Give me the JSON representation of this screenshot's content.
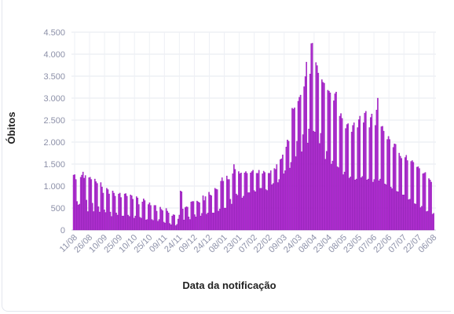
{
  "chart_data": {
    "type": "bar",
    "xlabel": "Data da notificação",
    "ylabel": "Óbitos",
    "ylim": [
      0,
      4500
    ],
    "yticks": [
      {
        "value": 0,
        "label": "0"
      },
      {
        "value": 500,
        "label": "500"
      },
      {
        "value": 1000,
        "label": "1.000"
      },
      {
        "value": 1500,
        "label": "1.500"
      },
      {
        "value": 2000,
        "label": "2.000"
      },
      {
        "value": 2500,
        "label": "2.500"
      },
      {
        "value": 3000,
        "label": "3.000"
      },
      {
        "value": 3500,
        "label": "3.500"
      },
      {
        "value": 4000,
        "label": "4.000"
      },
      {
        "value": 4500,
        "label": "4.500"
      }
    ],
    "xticks": [
      "11/08",
      "26/08",
      "10/09",
      "25/09",
      "10/10",
      "25/10",
      "09/11",
      "24/11",
      "09/12",
      "24/12",
      "08/01",
      "23/01",
      "07/02",
      "22/02",
      "09/03",
      "24/03",
      "08/04",
      "23/04",
      "08/05",
      "23/05",
      "07/06",
      "22/06",
      "07/07",
      "22/07",
      "06/08"
    ],
    "grid": true,
    "bar_color": "#b832d8",
    "bar_stroke": "#8a10b0",
    "values": [
      1250,
      1260,
      1150,
      650,
      570,
      590,
      1200,
      1250,
      1320,
      1180,
      1240,
      680,
      420,
      1190,
      1200,
      1150,
      610,
      420,
      1160,
      1100,
      1060,
      530,
      410,
      1080,
      980,
      840,
      460,
      400,
      950,
      920,
      820,
      410,
      310,
      890,
      840,
      770,
      390,
      340,
      820,
      840,
      740,
      320,
      320,
      820,
      830,
      770,
      340,
      310,
      800,
      780,
      700,
      270,
      320,
      760,
      730,
      580,
      290,
      270,
      640,
      710,
      670,
      230,
      240,
      580,
      620,
      560,
      240,
      220,
      560,
      560,
      430,
      200,
      240,
      520,
      470,
      440,
      180,
      160,
      490,
      430,
      390,
      150,
      120,
      320,
      350,
      340,
      100,
      130,
      250,
      340,
      890,
      870,
      480,
      230,
      510,
      530,
      520,
      300,
      240,
      640,
      650,
      650,
      350,
      300,
      660,
      640,
      620,
      320,
      380,
      780,
      670,
      760,
      360,
      390,
      860,
      800,
      780,
      390,
      390,
      950,
      930,
      920,
      430,
      480,
      1110,
      1190,
      1110,
      500,
      500,
      1230,
      1150,
      1150,
      700,
      590,
      1280,
      1490,
      1380,
      820,
      790,
      1330,
      1280,
      1300,
      730,
      770,
      1300,
      1330,
      1290,
      850,
      850,
      1300,
      1330,
      1360,
      900,
      870,
      1290,
      1290,
      1360,
      950,
      950,
      1280,
      1340,
      1310,
      920,
      900,
      1290,
      1290,
      1350,
      1030,
      1060,
      1400,
      1380,
      1490,
      1080,
      1150,
      1600,
      1620,
      1710,
      1280,
      1350,
      1890,
      2050,
      2020,
      1410,
      1540,
      2770,
      2750,
      2780,
      1670,
      2020,
      2930,
      3020,
      3070,
      1780,
      2170,
      3260,
      3490,
      3820,
      1980,
      2300,
      3550,
      4240,
      4250,
      2250,
      2230,
      3810,
      3740,
      3570,
      1970,
      2200,
      3420,
      3360,
      3340,
      1610,
      1790,
      3180,
      3160,
      3120,
      1500,
      1570,
      2940,
      3100,
      3140,
      1440,
      1420,
      2590,
      2650,
      2540,
      1260,
      1320,
      2310,
      2400,
      2420,
      1180,
      1210,
      2230,
      2380,
      2440,
      1140,
      1160,
      2330,
      2510,
      2590,
      1190,
      1220,
      2440,
      2660,
      2700,
      1140,
      1160,
      2330,
      2560,
      2640,
      1090,
      1150,
      2380,
      2730,
      3000,
      1120,
      1160,
      2350,
      2360,
      2250,
      1050,
      1030,
      2060,
      2130,
      2060,
      980,
      940,
      1880,
      1960,
      1950,
      880,
      870,
      1750,
      1680,
      1630,
      800,
      800,
      1650,
      1700,
      1580,
      690,
      700,
      1560,
      1580,
      1540,
      600,
      590,
      1430,
      1440,
      1400,
      510,
      540,
      1280,
      1290,
      1310,
      420,
      430,
      1170,
      1140,
      1090,
      360,
      380
    ]
  }
}
